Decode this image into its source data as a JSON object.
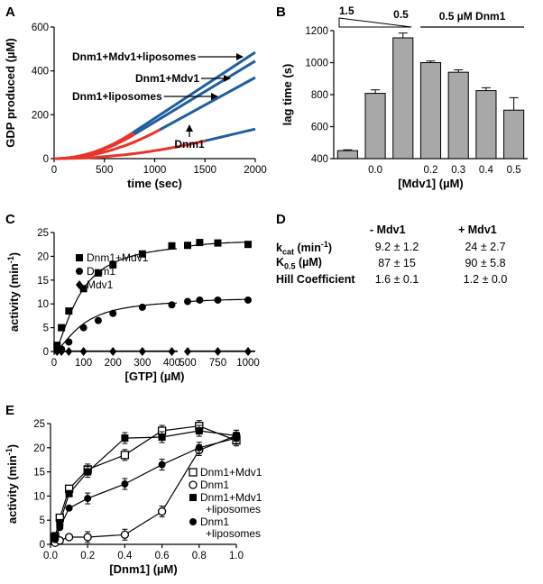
{
  "panels": [
    "A",
    "B",
    "C",
    "D",
    "E"
  ],
  "chart_data": [
    {
      "panel": "A",
      "type": "line",
      "xlabel": "time (sec)",
      "ylabel": "GDP produced (µM)",
      "xlim": [
        0,
        2000
      ],
      "ylim": [
        0,
        600
      ],
      "xticks": [
        0,
        500,
        1000,
        1500,
        2000
      ],
      "yticks": [
        0,
        200,
        400,
        600
      ],
      "lag_color": "#e8352b",
      "linear_color": "#1f5fa0",
      "series": [
        {
          "name": "Dnm1+Mdv1+liposomes",
          "lag_end": 780,
          "end_value": 485
        },
        {
          "name": "Dnm1+Mdv1",
          "lag_end": 800,
          "end_value": 445
        },
        {
          "name": "Dnm1+liposomes",
          "lag_end": 1050,
          "end_value": 370
        },
        {
          "name": "Dnm1",
          "lag_end": 1500,
          "end_value": 135
        }
      ]
    },
    {
      "panel": "B",
      "type": "bar",
      "ylabel": "lag time (s)",
      "xlabel": "[Mdv1] (µM)",
      "ylim": [
        400,
        1200
      ],
      "yticks": [
        400,
        600,
        800,
        1000,
        1200
      ],
      "bar_color": "#a8a8a8",
      "bars": [
        {
          "label": "",
          "value": 450,
          "err": 5
        },
        {
          "label": "0.0",
          "value": 808,
          "err": 22
        },
        {
          "label": "",
          "value": 1155,
          "err": 30
        },
        {
          "label": "0.2",
          "value": 1000,
          "err": 10
        },
        {
          "label": "0.3",
          "value": 940,
          "err": 15
        },
        {
          "label": "0.4",
          "value": 825,
          "err": 18
        },
        {
          "label": "0.5",
          "value": 703,
          "err": 78
        }
      ],
      "wedge_label_left": "1.5",
      "wedge_label_right": "0.5",
      "bracket_label": "0.5 µM Dnm1"
    },
    {
      "panel": "C",
      "type": "scatter",
      "xlabel": "[GTP] (µM)",
      "ylabel": "activity (min",
      "ylabel_sup": "-1",
      "ylabel_end": ")",
      "ylim": [
        0,
        25
      ],
      "yticks": [
        0,
        5,
        10,
        15,
        20,
        25
      ],
      "xticks_left": [
        0,
        100,
        200,
        300,
        400
      ],
      "xticks_right": [
        500,
        750,
        1000
      ],
      "series": [
        {
          "name": "Dnm1+Mdv1",
          "marker": "square",
          "x": [
            10,
            25,
            50,
            100,
            150,
            200,
            300,
            400,
            500,
            600,
            750,
            1000
          ],
          "y": [
            1.3,
            5.0,
            8.5,
            13.2,
            16.5,
            18.2,
            20.5,
            22.2,
            22.3,
            22.9,
            22.8,
            22.5
          ]
        },
        {
          "name": "Dnm1",
          "marker": "circle",
          "x": [
            10,
            25,
            50,
            100,
            150,
            200,
            300,
            400,
            500,
            600,
            750,
            1000
          ],
          "y": [
            0.2,
            0.5,
            2.0,
            5.0,
            6.5,
            8.0,
            9.3,
            9.8,
            10.5,
            10.8,
            10.8,
            10.8
          ]
        },
        {
          "name": "Mdv1",
          "marker": "diamond",
          "x": [
            10,
            25,
            50,
            100,
            200,
            300,
            400,
            500,
            750,
            1000
          ],
          "y": [
            0,
            0,
            0,
            0,
            0,
            0,
            0,
            0,
            0,
            0
          ]
        }
      ]
    },
    {
      "panel": "E",
      "type": "line",
      "xlabel": "[Dnm1] (µM)",
      "ylabel": "activity (min",
      "ylabel_sup": "-1",
      "ylabel_end": ")",
      "xlim": [
        0,
        1.0
      ],
      "ylim": [
        0,
        25
      ],
      "xticks": [
        0.0,
        0.2,
        0.4,
        0.6,
        0.8,
        1.0
      ],
      "yticks": [
        0,
        5,
        10,
        15,
        20,
        25
      ],
      "series": [
        {
          "name": "Dnm1+Mdv1",
          "marker": "open-square",
          "x": [
            0.025,
            0.05,
            0.1,
            0.2,
            0.4,
            0.6,
            0.8,
            1.0
          ],
          "y": [
            1.5,
            5.5,
            11.5,
            15.5,
            18.5,
            23.5,
            24.5,
            21.5
          ]
        },
        {
          "name": "Dnm1",
          "marker": "open-circle",
          "x": [
            0.025,
            0.05,
            0.1,
            0.2,
            0.4,
            0.6,
            0.8,
            1.0
          ],
          "y": [
            0.3,
            0.8,
            1.5,
            1.5,
            2.0,
            6.8,
            19.5,
            22.5
          ]
        },
        {
          "name": "Dnm1+Mdv1",
          "name2": "+liposomes",
          "marker": "filled-square",
          "x": [
            0.025,
            0.05,
            0.1,
            0.2,
            0.4,
            0.6,
            0.8,
            1.0
          ],
          "y": [
            1.8,
            4.5,
            10.5,
            15.0,
            22.0,
            22.2,
            23.5,
            22.5
          ]
        },
        {
          "name": "Dnm1",
          "name2": "+liposomes",
          "marker": "filled-circle",
          "x": [
            0.025,
            0.05,
            0.1,
            0.2,
            0.4,
            0.6,
            0.8,
            1.0
          ],
          "y": [
            1.0,
            3.5,
            7.5,
            9.5,
            12.5,
            16.5,
            20.0,
            22.0
          ]
        }
      ]
    }
  ],
  "table_D": {
    "panel": "D",
    "col_headers": [
      "- Mdv1",
      "+ Mdv1"
    ],
    "rows": [
      {
        "label": "k",
        "sub": "cat",
        "unit": " (min",
        "sup": "-1",
        "unit_end": ")",
        "values": [
          "9.2 ± 1.2",
          "24 ± 2.7"
        ]
      },
      {
        "label": "K",
        "sub": "0.5",
        "unit": " (µM)",
        "sup": "",
        "unit_end": "",
        "values": [
          "87 ± 15",
          "90 ± 5.8"
        ]
      },
      {
        "label": "Hill Coefficient",
        "sub": "",
        "unit": "",
        "sup": "",
        "unit_end": "",
        "values": [
          "1.6 ± 0.1",
          "1.2 ± 0.0"
        ]
      }
    ]
  }
}
